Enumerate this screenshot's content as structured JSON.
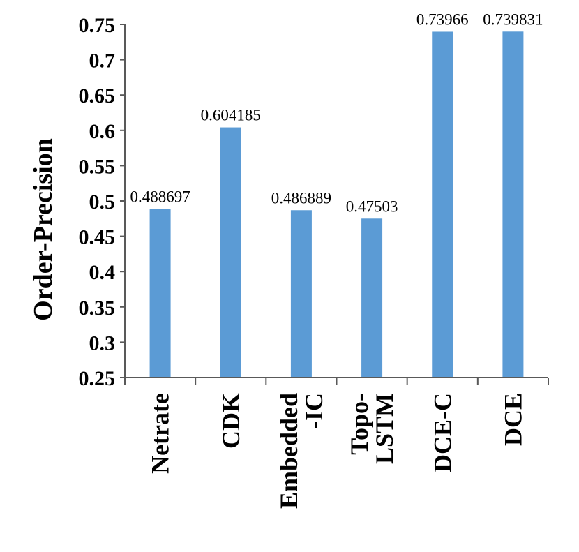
{
  "chart_data": {
    "type": "bar",
    "ylabel": "Order-Precision",
    "ylim": [
      0.25,
      0.75
    ],
    "yticks": [
      "0.25",
      "0.3",
      "0.35",
      "0.4",
      "0.45",
      "0.5",
      "0.55",
      "0.6",
      "0.65",
      "0.7",
      "0.75"
    ],
    "categories": [
      {
        "lines": [
          "Netrate"
        ]
      },
      {
        "lines": [
          "CDK"
        ]
      },
      {
        "lines": [
          "Embedded",
          "-IC"
        ]
      },
      {
        "lines": [
          "Topo-",
          "LSTM"
        ]
      },
      {
        "lines": [
          "DCE-C"
        ]
      },
      {
        "lines": [
          "DCE"
        ]
      }
    ],
    "values": [
      0.488697,
      0.604185,
      0.486889,
      0.47503,
      0.73966,
      0.739831
    ],
    "data_labels": [
      "0.488697",
      "0.604185",
      "0.486889",
      "0.47503",
      "0.73966",
      "0.739831"
    ],
    "bar_color": "#5b9bd5",
    "grid": false,
    "legend": "none"
  }
}
